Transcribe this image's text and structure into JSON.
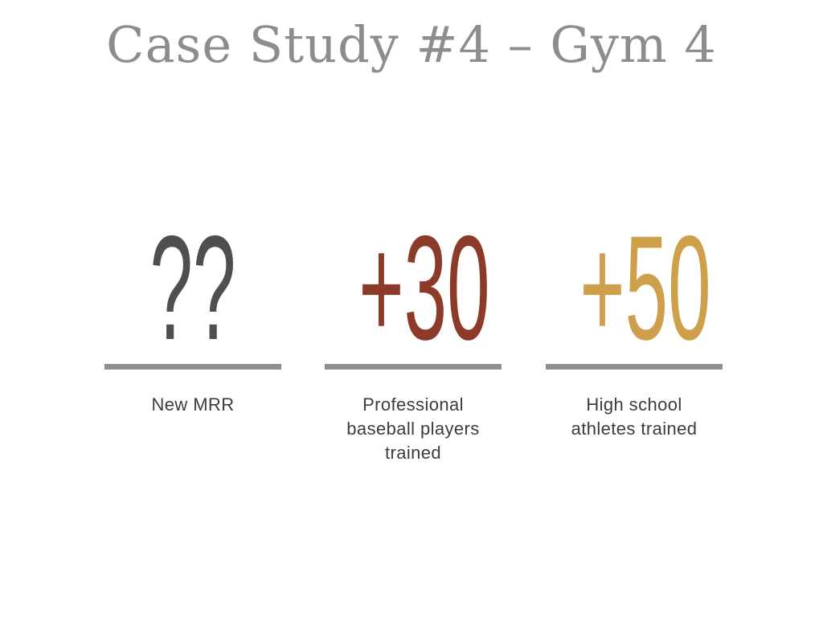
{
  "slide": {
    "title": "Case Study #4 – Gym 4",
    "stats": [
      {
        "value": "??",
        "label": "New MRR",
        "color": "#4f4f52"
      },
      {
        "value": "+30",
        "label": "Professional baseball players trained",
        "color": "#8c3b2a"
      },
      {
        "value": "+50",
        "label": "High school athletes trained",
        "color": "#cfa04c"
      }
    ],
    "colors": {
      "background": "#ffffff",
      "title_text": "#8d8d8d",
      "divider": "#8f8f8f",
      "label_text": "#3c3c3c"
    }
  }
}
